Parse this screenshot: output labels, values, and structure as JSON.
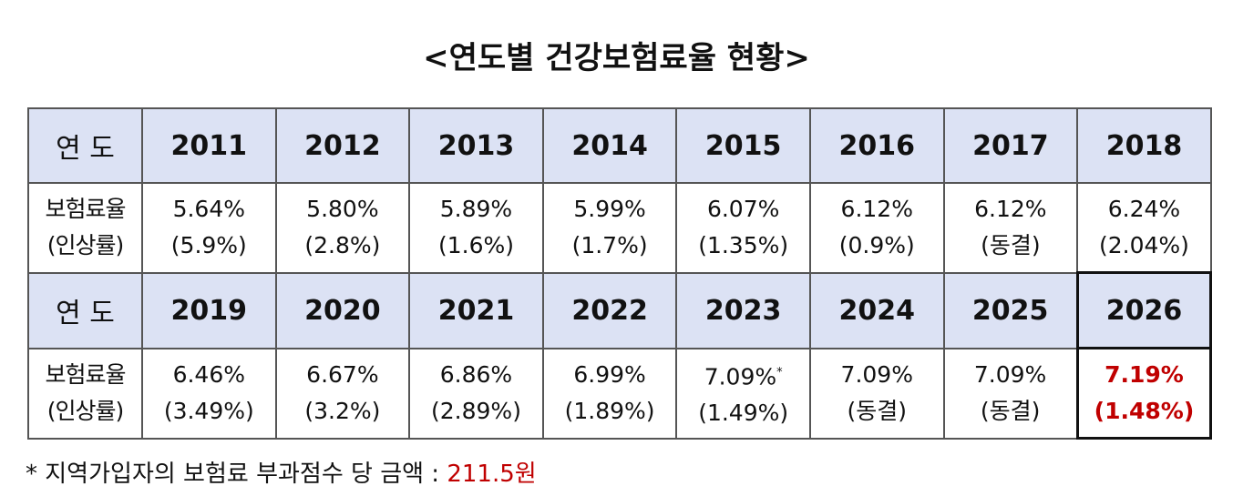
{
  "title": "<연도별 건강보험료율 현황>",
  "blocks": [
    {
      "year_label": "연 도",
      "rate_label": "보험료율",
      "change_label": "(인상률)",
      "years": [
        "2011",
        "2012",
        "2013",
        "2014",
        "2015",
        "2016",
        "2017",
        "2018"
      ],
      "rates": [
        "5.64%",
        "5.80%",
        "5.89%",
        "5.99%",
        "6.07%",
        "6.12%",
        "6.12%",
        "6.24%"
      ],
      "changes": [
        "(5.9%)",
        "(2.8%)",
        "(1.6%)",
        "(1.7%)",
        "(1.35%)",
        "(0.9%)",
        "(동결)",
        "(2.04%)"
      ],
      "highlight_last": false
    },
    {
      "year_label": "연 도",
      "rate_label": "보험료율",
      "change_label": "(인상률)",
      "years": [
        "2019",
        "2020",
        "2021",
        "2022",
        "2023",
        "2024",
        "2025",
        "2026"
      ],
      "rates": [
        "6.46%",
        "6.67%",
        "6.86%",
        "6.99%",
        "7.09%",
        "7.09%",
        "7.09%",
        "7.19%"
      ],
      "rate_superscripts": [
        null,
        null,
        null,
        null,
        "*",
        null,
        null,
        null
      ],
      "changes": [
        "(3.49%)",
        "(3.2%)",
        "(2.89%)",
        "(1.89%)",
        "(1.49%)",
        "(동결)",
        "(동결)",
        "(1.48%)"
      ],
      "highlight_last": true
    }
  ],
  "footnote": {
    "text": "* 지역가입자의 보험료 부과점수 당 금액 : ",
    "amount": "211.5원"
  }
}
